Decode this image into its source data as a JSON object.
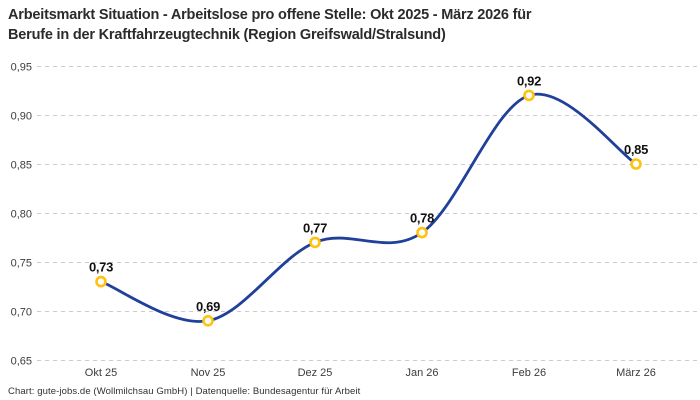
{
  "title": {
    "line1": "Arbeitsmarkt Situation - Arbeitslose pro offene Stelle: Okt 2025 - März 2026 für",
    "line2": "Berufe in der Kraftfahrzeugtechnik (Region Greifswald/Stralsund)"
  },
  "footer": "Chart: gute-jobs.de (Wollmilchsau GmbH) | Datenquelle: Bundesagentur für Arbeit",
  "colors": {
    "line": "#20409a",
    "marker_ring": "#ffc20e",
    "marker_fill": "#ffffff",
    "gridline": "#cccccc",
    "title_text": "#2b2b2b",
    "tick_text": "#3c3c3c",
    "data_label": "#111111"
  },
  "chart_data": {
    "type": "line",
    "title": "Arbeitsmarkt Situation - Arbeitslose pro offene Stelle: Okt 2025 - März 2026 für Berufe in der Kraftfahrzeugtechnik (Region Greifswald/Stralsund)",
    "categories": [
      "Okt 25",
      "Nov 25",
      "Dez 25",
      "Jan 26",
      "Feb 26",
      "März 26"
    ],
    "series": [
      {
        "name": "Arbeitslose pro offene Stelle",
        "values": [
          0.73,
          0.69,
          0.77,
          0.78,
          0.92,
          0.85
        ],
        "value_labels": [
          "0,73",
          "0,69",
          "0,77",
          "0,78",
          "0,92",
          "0,85"
        ]
      }
    ],
    "ylim": [
      0.65,
      0.95
    ],
    "ytick_values": [
      0.65,
      0.7,
      0.75,
      0.8,
      0.85,
      0.9,
      0.95
    ],
    "ytick_labels": [
      "0,65",
      "0,70",
      "0,75",
      "0,80",
      "0,85",
      "0,90",
      "0,95"
    ],
    "grid": "dashed-horizontal",
    "legend_position": "none",
    "xlabel": "",
    "ylabel": ""
  }
}
